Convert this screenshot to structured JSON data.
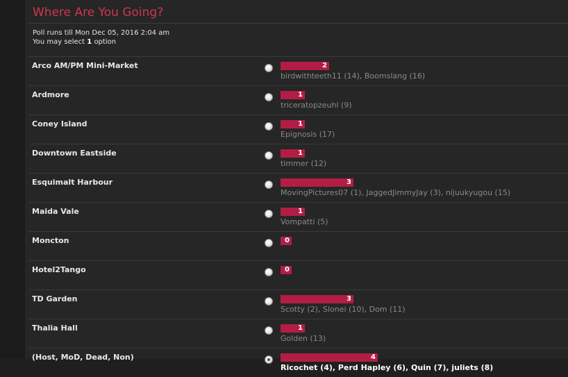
{
  "poll": {
    "title": "Where Are You Going?",
    "runs_till": "Poll runs till Mon Dec 05, 2016 2:04 am",
    "select_prefix": "You may select",
    "select_count": "1",
    "select_suffix": "option",
    "accent_color": "#d0364f",
    "bar_color": "#b31d45"
  },
  "options": [
    {
      "label": "Arco AM/PM Mini-Market",
      "count": "2",
      "voters": "birdwithteeth11 (14), Boomslang (16)",
      "selected": false
    },
    {
      "label": "Ardmore",
      "count": "1",
      "voters": "triceratopzeuhl (9)",
      "selected": false
    },
    {
      "label": "Coney Island",
      "count": "1",
      "voters": "Epignosis (17)",
      "selected": false
    },
    {
      "label": "Downtown Eastside",
      "count": "1",
      "voters": "timmer (12)",
      "selected": false
    },
    {
      "label": "Esquimalt Harbour",
      "count": "3",
      "voters": "MovingPictures07 (1), JaggedJimmyJay (3), nijuukyugou (15)",
      "selected": false
    },
    {
      "label": "Maida Vale",
      "count": "1",
      "voters": "Vompatti (5)",
      "selected": false
    },
    {
      "label": "Moncton",
      "count": "0",
      "voters": "",
      "selected": false
    },
    {
      "label": "Hotel2Tango",
      "count": "0",
      "voters": "",
      "selected": false
    },
    {
      "label": "TD Garden",
      "count": "3",
      "voters": "Scotty (2), Slonei (10), Dom (11)",
      "selected": false
    },
    {
      "label": "Thalia Hall",
      "count": "1",
      "voters": "Golden (13)",
      "selected": false
    },
    {
      "label": "(Host, MoD, Dead, Non)",
      "count": "4",
      "voters": "Ricochet (4), Perd Hapley (6), Quin (7), juliets (8)",
      "selected": true
    }
  ]
}
